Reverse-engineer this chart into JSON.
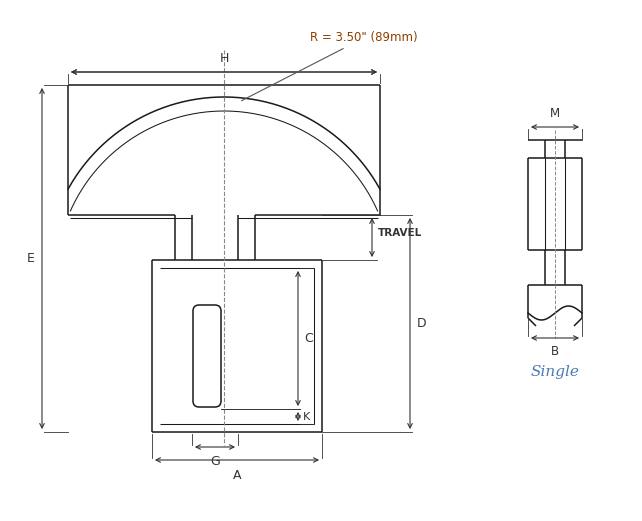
{
  "bg_color": "#ffffff",
  "line_color": "#1a1a1a",
  "dim_color": "#333333",
  "radius_text_color": "#8B4000",
  "single_text_color": "#4a7ab5",
  "radius_label": "R = 3.50\" (89mm)",
  "single_label": "Single",
  "labels": {
    "H": "H",
    "E": "E",
    "A": "A",
    "G": "G",
    "C": "C",
    "D": "D",
    "K": "K",
    "TRAVEL": "TRAVEL",
    "M": "M",
    "B": "B"
  }
}
